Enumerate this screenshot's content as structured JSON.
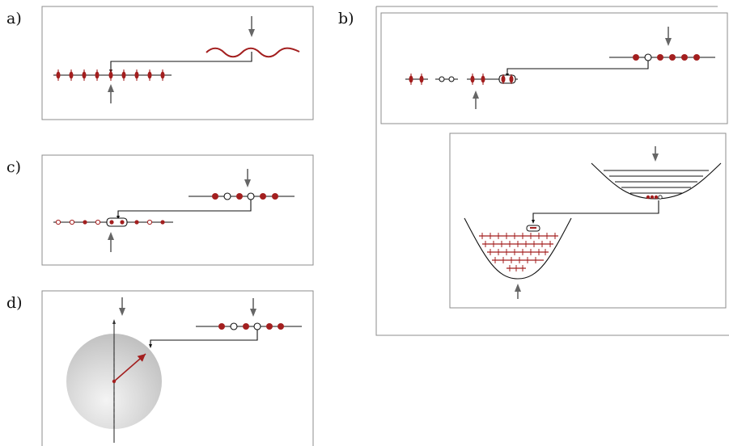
{
  "panels": {
    "a": {
      "label": "a)"
    },
    "b": {
      "label": "b)"
    },
    "c": {
      "label": "c)"
    },
    "d": {
      "label": "d)"
    }
  },
  "colors": {
    "accent": "#a31f1f",
    "frame": "#8c8c8c",
    "arrow": "#666666",
    "line": "#111111"
  },
  "icons": {
    "down_arrow": "down-arrow-icon",
    "up_arrow": "up-arrow-icon",
    "bloch_sphere": "bloch-sphere-icon"
  }
}
